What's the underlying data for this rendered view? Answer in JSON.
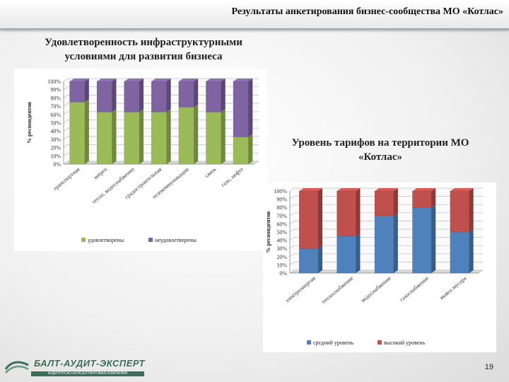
{
  "header": {
    "title": "Результаты анкетирования бизнес-сообщества МО «Котлас»"
  },
  "left_heading": {
    "line1": "Удовлетворенность инфраструктурными",
    "line2": "условиями для развития бизнеса"
  },
  "right_heading": {
    "line1": "Уровень тарифов на территории МО",
    "line2": "«Котлас»"
  },
  "page_number": "19",
  "logo": {
    "name": "БАЛТ-АУДИТ-ЭКСПЕРТ",
    "sub": "АУДИТОРСКО-КОНСАЛТИНГОВАЯ КОМПАНИЯ"
  },
  "colors": {
    "green": "#9bbb59",
    "purple": "#8064a2",
    "blue": "#4f81bd",
    "red": "#c0504d"
  },
  "chart_data": [
    {
      "type": "bar",
      "stacked": true,
      "percent": true,
      "ylabel": "% респондентов",
      "ylim": [
        0,
        100
      ],
      "yticks": [
        "0%",
        "10%",
        "20%",
        "30%",
        "40%",
        "50%",
        "60%",
        "70%",
        "80%",
        "90%",
        "100%"
      ],
      "categories": [
        "транспортная",
        "энерго",
        "тепло, водоснабжение",
        "градостроительная",
        "телекоммуникации",
        "связь",
        "газо, нефте"
      ],
      "series": [
        {
          "name": "удовлетворены",
          "color": "#9bbb59",
          "values": [
            75,
            63,
            63,
            63,
            69,
            63,
            33
          ]
        },
        {
          "name": "неудовлетворены",
          "color": "#8064a2",
          "values": [
            25,
            37,
            37,
            37,
            31,
            37,
            67
          ]
        }
      ],
      "legend": "bottom",
      "grid": true
    },
    {
      "type": "bar",
      "stacked": true,
      "percent": true,
      "ylabel": "% респондентов",
      "ylim": [
        0,
        100
      ],
      "yticks": [
        "0%",
        "10%",
        "20%",
        "30%",
        "40%",
        "50%",
        "60%",
        "70%",
        "80%",
        "90%",
        "100%"
      ],
      "categories": [
        "электроэнергия",
        "теплоснабжение",
        "водоснабжение",
        "газоснабжение",
        "вывоз мусора"
      ],
      "series": [
        {
          "name": "средний уровень",
          "color": "#4f81bd",
          "values": [
            30,
            45,
            70,
            80,
            50
          ]
        },
        {
          "name": "высокий уровень",
          "color": "#c0504d",
          "values": [
            70,
            55,
            30,
            20,
            50
          ]
        }
      ],
      "legend": "bottom",
      "grid": true
    }
  ]
}
